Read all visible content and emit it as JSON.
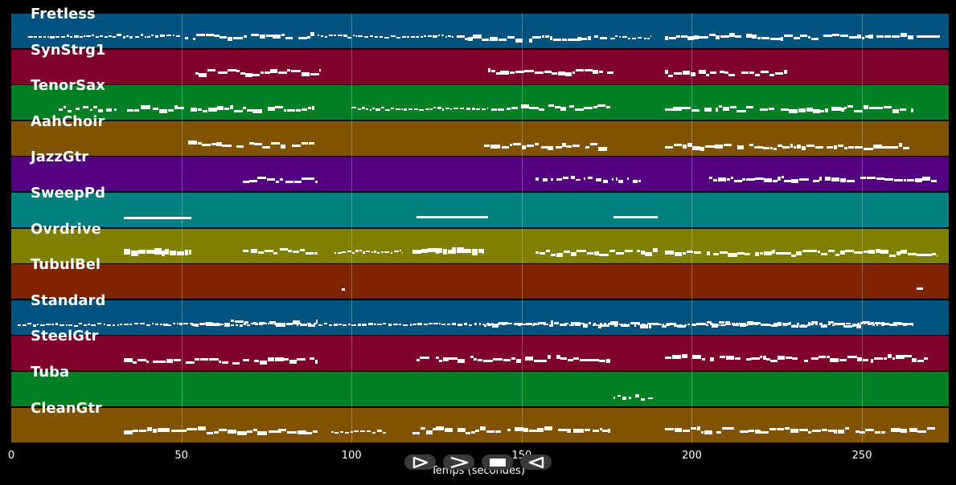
{
  "tracks": [
    {
      "name": "Fretless",
      "color": "#00527f"
    },
    {
      "name": "SynStrg1",
      "color": "#7f002a"
    },
    {
      "name": "TenorSax",
      "color": "#007f23"
    },
    {
      "name": "AahChoir",
      "color": "#7f5300"
    },
    {
      "name": "JazzGtr",
      "color": "#520080"
    },
    {
      "name": "SweepPd",
      "color": "#007f7f"
    },
    {
      "name": "Ovrdrive",
      "color": "#7f7f00"
    },
    {
      "name": "TubulBel",
      "color": "#7f2300"
    },
    {
      "name": "Standard",
      "color": "#00527f"
    },
    {
      "name": "SteelGtr",
      "color": "#7f002a"
    },
    {
      "name": "Tuba",
      "color": "#007f23"
    },
    {
      "name": "CleanGtr",
      "color": "#7f5300"
    }
  ],
  "axis": {
    "label": "Temps (secondes)",
    "ticks": [
      "0",
      "50",
      "100",
      "150",
      "200",
      "250"
    ],
    "tick_values": [
      0,
      50,
      100,
      150,
      200,
      250
    ],
    "range": [
      0,
      275.5
    ]
  },
  "controls": [
    {
      "name": "play-button",
      "icon": "play-icon"
    },
    {
      "name": "forward-button",
      "icon": "forward-icon"
    },
    {
      "name": "stop-button",
      "icon": "stop-icon"
    },
    {
      "name": "rewind-button",
      "icon": "rewind-icon"
    }
  ],
  "note_segments": [
    [
      [
        5,
        50,
        "dense"
      ],
      [
        51,
        89,
        "long"
      ],
      [
        90,
        130,
        "dense"
      ],
      [
        131,
        175,
        "long"
      ],
      [
        176,
        188,
        "dense"
      ],
      [
        192,
        265,
        "long"
      ],
      [
        266,
        273,
        "line"
      ]
    ],
    [
      [
        54,
        91,
        "long"
      ],
      [
        140,
        177,
        "long"
      ],
      [
        192,
        228,
        "long"
      ]
    ],
    [
      [
        14,
        31,
        "sparse"
      ],
      [
        34,
        89,
        "long"
      ],
      [
        100,
        140,
        "dense"
      ],
      [
        141,
        176,
        "long"
      ],
      [
        192,
        265,
        "long"
      ]
    ],
    [
      [
        52,
        89,
        "long"
      ],
      [
        139,
        175,
        "long"
      ],
      [
        192,
        264,
        "long"
      ]
    ],
    [
      [
        68,
        90,
        "long"
      ],
      [
        154,
        185,
        "sparse"
      ],
      [
        205,
        272,
        "long"
      ]
    ],
    [
      [
        33,
        53,
        "line"
      ],
      [
        119,
        140,
        "line"
      ],
      [
        177,
        190,
        "line"
      ]
    ],
    [
      [
        33,
        53,
        "block"
      ],
      [
        68,
        90,
        "long"
      ],
      [
        95,
        115,
        "dense"
      ],
      [
        118,
        139,
        "block"
      ],
      [
        154,
        190,
        "long"
      ],
      [
        192,
        272,
        "long"
      ]
    ],
    [
      [
        97,
        98,
        "line"
      ],
      [
        266,
        268,
        "line"
      ]
    ],
    [
      [
        2,
        265,
        "dense"
      ],
      [
        53,
        90,
        "long"
      ],
      [
        139,
        265,
        "long"
      ]
    ],
    [
      [
        33,
        90,
        "long"
      ],
      [
        119,
        176,
        "long"
      ],
      [
        192,
        270,
        "long"
      ]
    ],
    [
      [
        177,
        189,
        "sparse"
      ]
    ],
    [
      [
        33,
        90,
        "long"
      ],
      [
        94,
        110,
        "dense"
      ],
      [
        118,
        176,
        "long"
      ],
      [
        192,
        273,
        "long"
      ]
    ]
  ]
}
